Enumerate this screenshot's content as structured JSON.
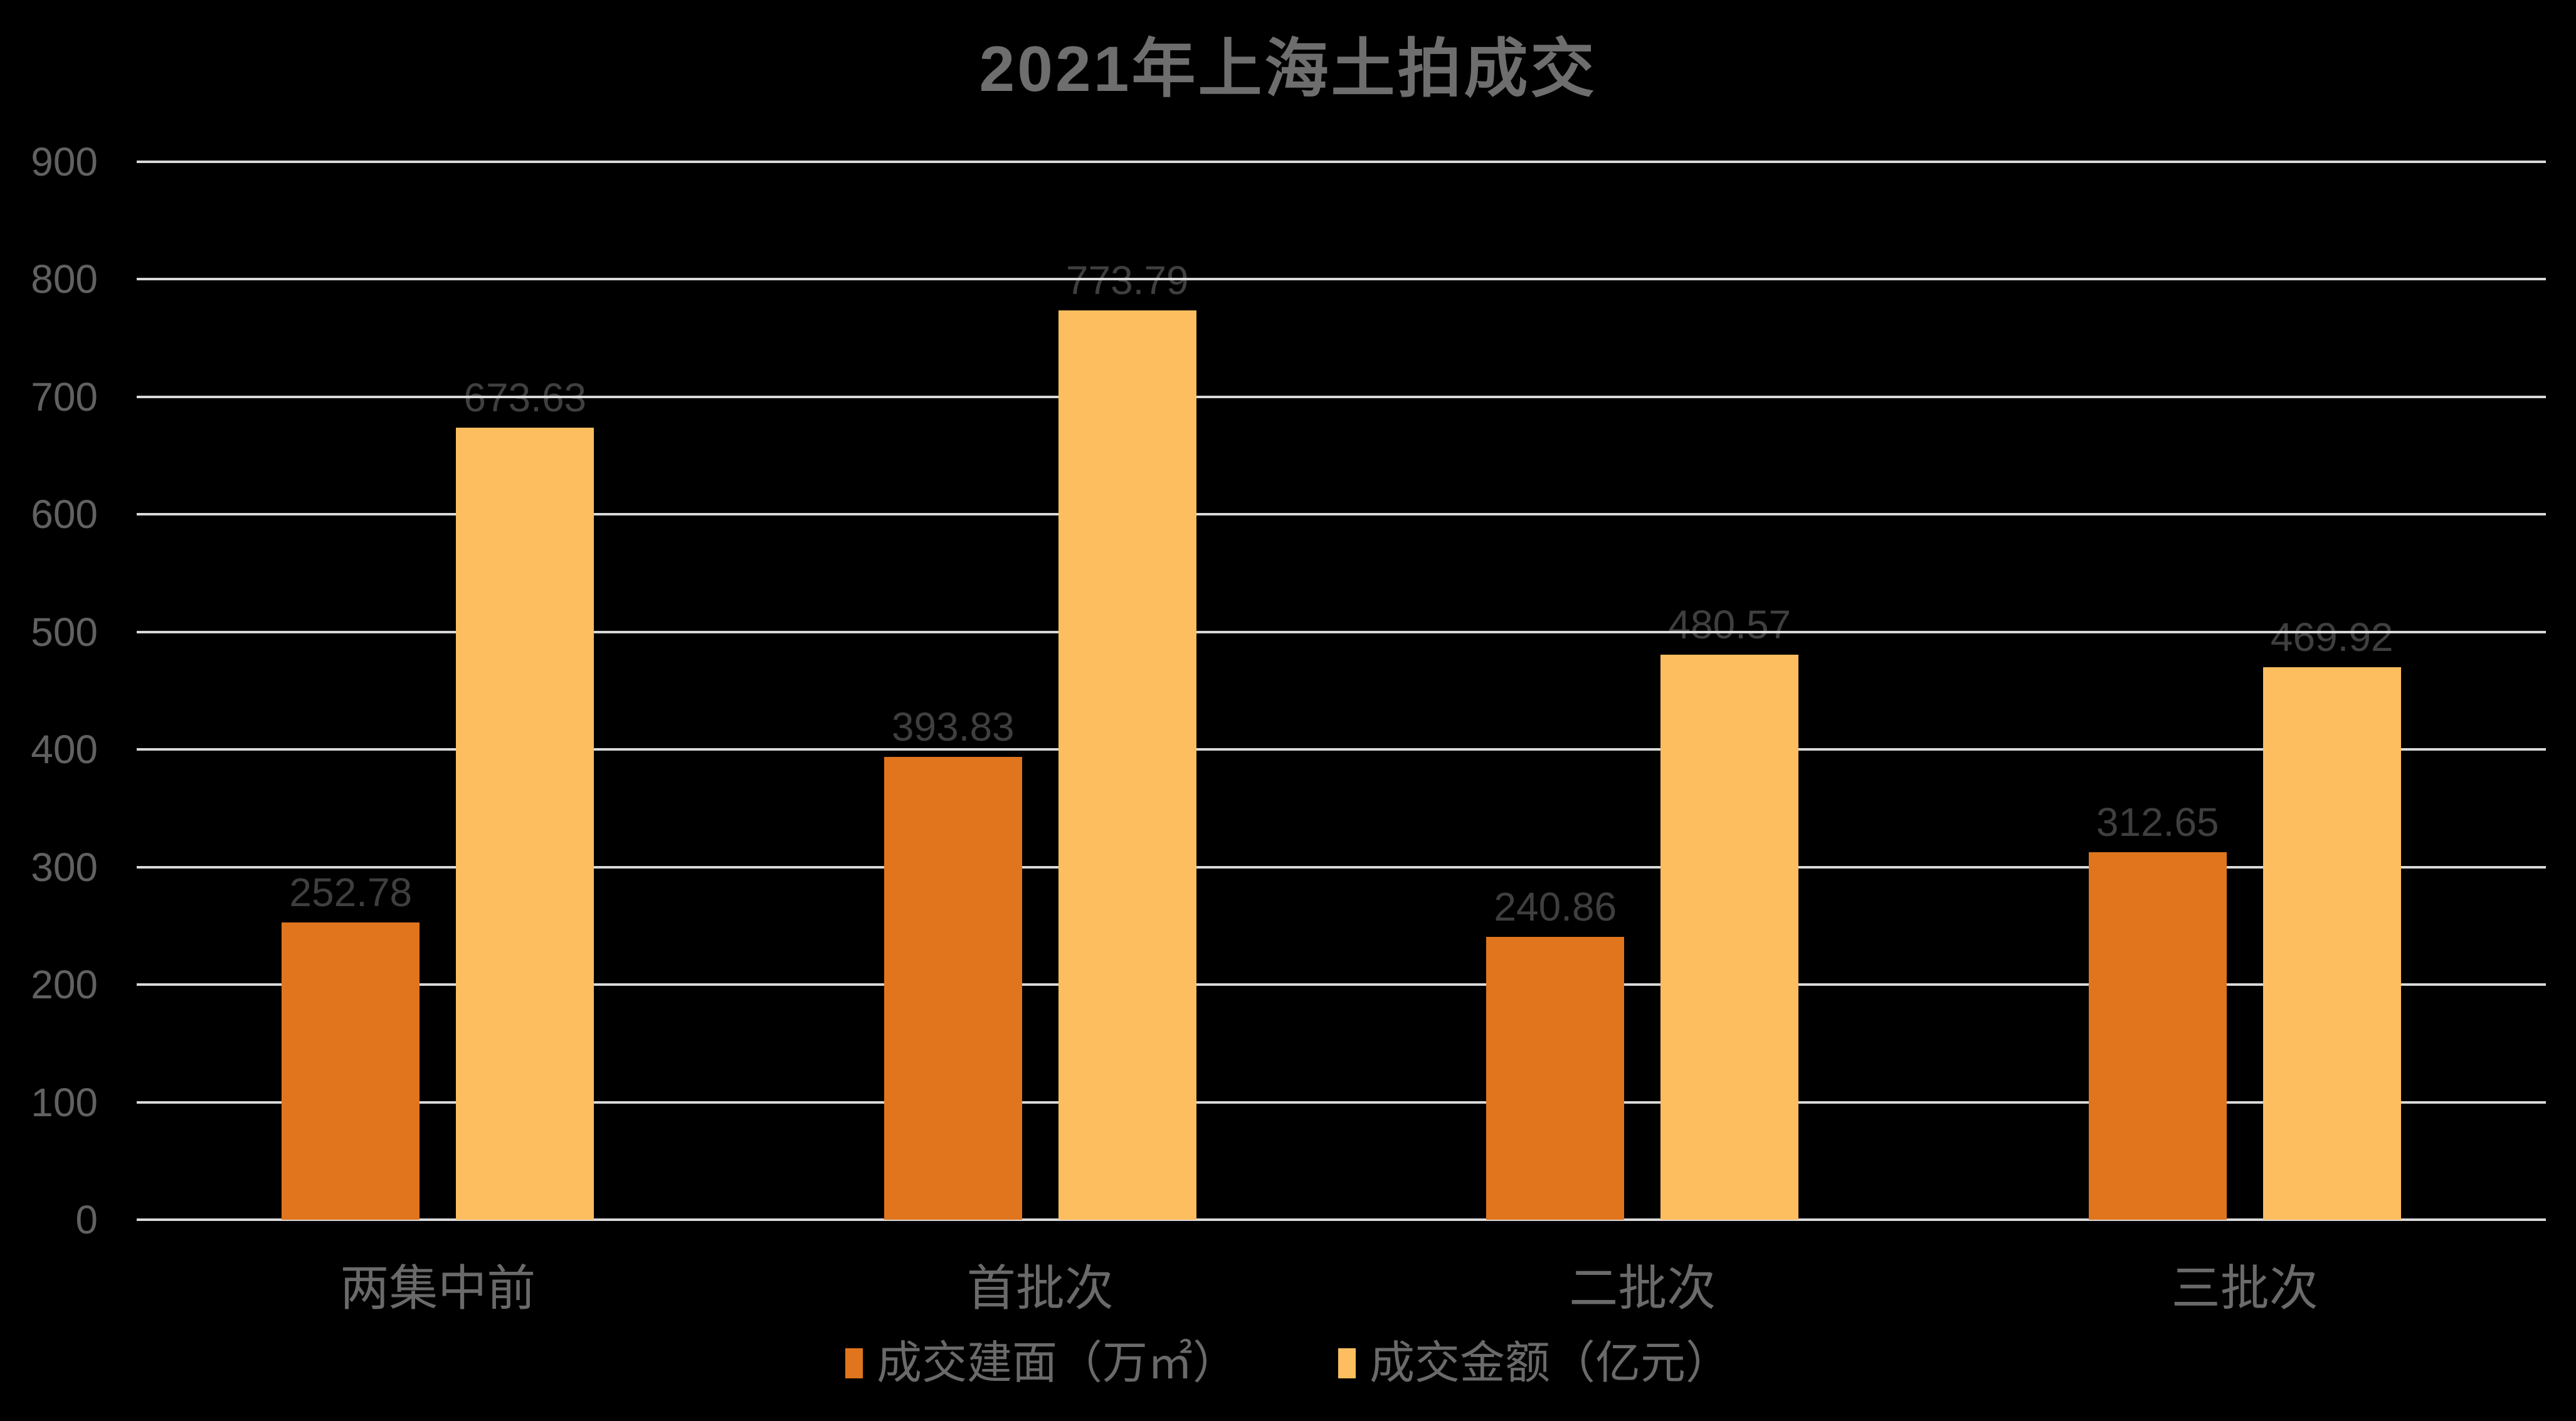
{
  "chart_data": {
    "type": "bar",
    "title": "2021年上海土拍成交",
    "categories": [
      "两集中前",
      "首批次",
      "二批次",
      "三批次"
    ],
    "series": [
      {
        "name": "成交建面（万㎡）",
        "color": "#E0751E",
        "values": [
          252.78,
          393.83,
          240.86,
          312.65
        ]
      },
      {
        "name": "成交金额（亿元）",
        "color": "#FDBE5F",
        "values": [
          673.63,
          773.79,
          480.57,
          469.92
        ]
      }
    ],
    "ylim": [
      0,
      900
    ],
    "ytick_step": 100,
    "grid": true,
    "legend_position": "bottom",
    "colors": {
      "background": "#000000",
      "gridline": "#D9D9D9",
      "title_text": "#6E6E6E",
      "axis_tick_text": "#616161",
      "category_text": "#6A6A6A",
      "data_label_text": "#3F3F3F",
      "legend_text": "#6A6A6A"
    }
  }
}
